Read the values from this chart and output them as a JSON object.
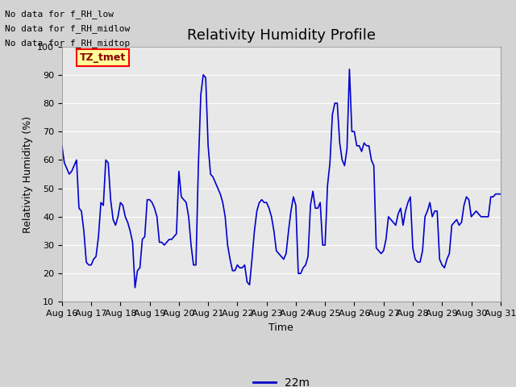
{
  "title": "Relativity Humidity Profile",
  "ylabel": "Relativity Humidity (%)",
  "xlabel": "Time",
  "ylim": [
    10,
    100
  ],
  "yticks": [
    10,
    20,
    30,
    40,
    50,
    60,
    70,
    80,
    90,
    100
  ],
  "line_color": "#0000CC",
  "line_width": 1.2,
  "legend_label": "22m",
  "annotations_text": [
    "No data for f_RH_low",
    "No data for f_RH_midlow",
    "No data for f_RH_midtop"
  ],
  "annotation_box_label": "TZ_tmet",
  "annotation_box_facecolor": "#FFFF99",
  "annotation_box_edgecolor": "#FF0000",
  "annotation_text_color": "#8B0000",
  "fig_facecolor": "#D3D3D3",
  "plot_facecolor": "#E8E8E8",
  "grid_color": "#FFFFFF",
  "x_tick_labels": [
    "Aug 16",
    "Aug 17",
    "Aug 18",
    "Aug 19",
    "Aug 20",
    "Aug 21",
    "Aug 22",
    "Aug 23",
    "Aug 24",
    "Aug 25",
    "Aug 26",
    "Aug 27",
    "Aug 28",
    "Aug 29",
    "Aug 30",
    "Aug 31"
  ],
  "x_tick_positions": [
    0,
    24,
    48,
    72,
    96,
    120,
    144,
    168,
    192,
    216,
    240,
    264,
    288,
    312,
    336,
    360
  ],
  "xlim": [
    0,
    360
  ],
  "data_x": [
    0,
    2,
    4,
    6,
    8,
    10,
    12,
    14,
    16,
    18,
    20,
    22,
    24,
    26,
    28,
    30,
    32,
    34,
    36,
    38,
    40,
    42,
    44,
    46,
    48,
    50,
    52,
    54,
    56,
    58,
    60,
    62,
    64,
    66,
    68,
    70,
    72,
    74,
    76,
    78,
    80,
    82,
    84,
    86,
    88,
    90,
    92,
    94,
    96,
    98,
    100,
    102,
    104,
    106,
    108,
    110,
    112,
    114,
    116,
    118,
    120,
    122,
    124,
    126,
    128,
    130,
    132,
    134,
    136,
    138,
    140,
    142,
    144,
    146,
    148,
    150,
    152,
    154,
    156,
    158,
    160,
    162,
    164,
    166,
    168,
    170,
    172,
    174,
    176,
    178,
    180,
    182,
    184,
    186,
    188,
    190,
    192,
    194,
    196,
    198,
    200,
    202,
    204,
    206,
    208,
    210,
    212,
    214,
    216,
    218,
    220,
    222,
    224,
    226,
    228,
    230,
    232,
    234,
    236,
    238,
    240,
    242,
    244,
    246,
    248,
    250,
    252,
    254,
    256,
    258,
    260,
    262,
    264,
    266,
    268,
    270,
    272,
    274,
    276,
    278,
    280,
    282,
    284,
    286,
    288,
    290,
    292,
    294,
    296,
    298,
    300,
    302,
    304,
    306,
    308,
    310,
    312,
    314,
    316,
    318,
    320,
    322,
    324,
    326,
    328,
    330,
    332,
    334,
    336,
    338,
    340,
    342,
    344,
    346,
    348,
    350,
    352,
    354,
    356,
    358,
    360
  ],
  "data_y": [
    65,
    59,
    57,
    55,
    56,
    58,
    60,
    43,
    42,
    35,
    24,
    23,
    23,
    25,
    26,
    33,
    45,
    44,
    60,
    59,
    46,
    39,
    37,
    40,
    45,
    44,
    40,
    38,
    35,
    31,
    15,
    21,
    22,
    32,
    33,
    46,
    46,
    45,
    43,
    40,
    31,
    31,
    30,
    31,
    32,
    32,
    33,
    34,
    56,
    47,
    46,
    45,
    40,
    30,
    23,
    23,
    58,
    83,
    90,
    89,
    65,
    55,
    54,
    52,
    50,
    48,
    45,
    40,
    30,
    25,
    21,
    21,
    23,
    22,
    22,
    23,
    17,
    16,
    25,
    35,
    42,
    45,
    46,
    45,
    45,
    43,
    40,
    35,
    28,
    27,
    26,
    25,
    27,
    35,
    42,
    47,
    44,
    20,
    20,
    22,
    23,
    26,
    44,
    49,
    43,
    43,
    45,
    30,
    30,
    51,
    59,
    76,
    80,
    80,
    66,
    60,
    58,
    64,
    92,
    70,
    70,
    65,
    65,
    63,
    66,
    65,
    65,
    60,
    58,
    29,
    28,
    27,
    28,
    32,
    40,
    39,
    38,
    37,
    41,
    43,
    37,
    42,
    45,
    47,
    29,
    25,
    24,
    24,
    28,
    40,
    42,
    45,
    40,
    42,
    42,
    25,
    23,
    22,
    25,
    27,
    37,
    38,
    39,
    37,
    38,
    44,
    47,
    46,
    40,
    41,
    42,
    41,
    40,
    40,
    40,
    40,
    47,
    47,
    48,
    48,
    48
  ]
}
